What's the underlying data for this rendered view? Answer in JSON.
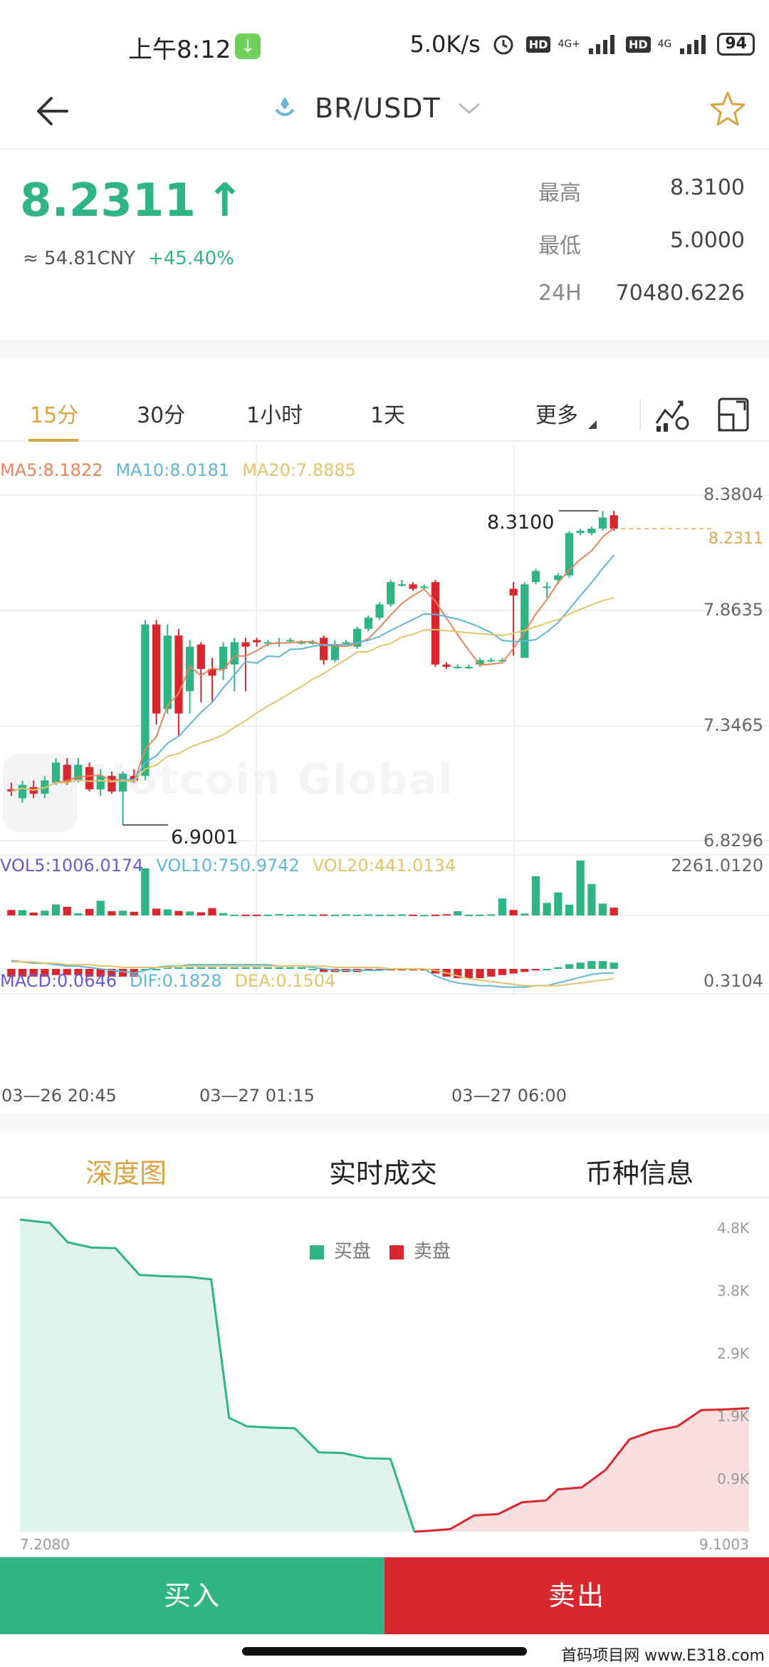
{
  "status_bar": {
    "time": "上午8:12",
    "speed": "5.0K/s",
    "net1": "4G+",
    "net2": "4G",
    "hd": "HD",
    "battery": "94",
    "icons": [
      "download-arrow-icon",
      "alarm-icon",
      "signal-icon"
    ]
  },
  "nav": {
    "pair": "BR/USDT",
    "icons": [
      "back-arrow-icon",
      "coin-logo-icon",
      "chevron-down-icon",
      "star-icon"
    ]
  },
  "ticker": {
    "price": "8.2311",
    "arrow": "↑",
    "cny": "≈ 54.81CNY",
    "change": "+45.40%",
    "high_label": "最高",
    "high": "8.3100",
    "low_label": "最低",
    "low": "5.0000",
    "vol_label": "24H",
    "vol": "70480.6226"
  },
  "timeframes": {
    "items": [
      "15分",
      "30分",
      "1小时",
      "1天"
    ],
    "active": "15分",
    "more": "更多",
    "icons": [
      "indicator-settings-icon",
      "fullscreen-icon"
    ]
  },
  "indicators": {
    "ma5": "MA5:8.1822",
    "ma10": "MA10:8.0181",
    "ma20": "MA20:7.8885",
    "vol5": "VOL5:1006.0174",
    "vol10": "VOL10:750.9742",
    "vol20": "VOL20:441.0134",
    "macd": "MACD:0.0646",
    "dif": "DIF:0.1828",
    "dea": "DEA:0.1504"
  },
  "price_axis": [
    "8.3804",
    "7.8635",
    "7.3465",
    "6.8296"
  ],
  "vol_axis": "2261.0120",
  "macd_axis": "0.3104",
  "high_marker": "8.3100",
  "low_marker": "6.9001",
  "last_marker": "8.2311",
  "watermark": "Hotcoin Global",
  "time_axis": [
    "03—26 20:45",
    "03—27 01:15",
    "03—27 06:00"
  ],
  "chart_data": {
    "type": "candlestick",
    "candles": [
      [
        7.06,
        7.05,
        7.09,
        7.03
      ],
      [
        7.02,
        7.08,
        7.1,
        7.0
      ],
      [
        7.07,
        7.04,
        7.1,
        7.02
      ],
      [
        7.04,
        7.1,
        7.12,
        7.02
      ],
      [
        7.09,
        7.18,
        7.2,
        7.08
      ],
      [
        7.17,
        7.09,
        7.2,
        7.08
      ],
      [
        7.1,
        7.17,
        7.2,
        7.09
      ],
      [
        7.16,
        7.06,
        7.18,
        7.05
      ],
      [
        7.06,
        7.12,
        7.15,
        7.03
      ],
      [
        7.12,
        7.05,
        7.14,
        7.04
      ],
      [
        7.05,
        7.13,
        7.14,
        6.9
      ],
      [
        7.12,
        7.1,
        7.15,
        7.09
      ],
      [
        7.12,
        7.8,
        7.82,
        7.1
      ],
      [
        7.8,
        7.4,
        7.82,
        7.35
      ],
      [
        7.42,
        7.75,
        7.8,
        7.4
      ],
      [
        7.75,
        7.4,
        7.78,
        7.3
      ],
      [
        7.5,
        7.7,
        7.73,
        7.4
      ],
      [
        7.71,
        7.6,
        7.72,
        7.45
      ],
      [
        7.6,
        7.57,
        7.65,
        7.45
      ],
      [
        7.6,
        7.7,
        7.72,
        7.55
      ],
      [
        7.62,
        7.72,
        7.74,
        7.5
      ],
      [
        7.72,
        7.7,
        7.74,
        7.5
      ],
      [
        7.73,
        7.72,
        7.74,
        7.7
      ],
      [
        7.72,
        7.72,
        7.73,
        7.7
      ],
      [
        7.72,
        7.72,
        7.74,
        7.7
      ],
      [
        7.73,
        7.73,
        7.74,
        7.72
      ],
      [
        7.72,
        7.72,
        7.73,
        7.71
      ],
      [
        7.72,
        7.72,
        7.73,
        7.71
      ],
      [
        7.74,
        7.64,
        7.75,
        7.62
      ],
      [
        7.64,
        7.71,
        7.73,
        7.63
      ],
      [
        7.72,
        7.72,
        7.73,
        7.71
      ],
      [
        7.7,
        7.78,
        7.79,
        7.69
      ],
      [
        7.78,
        7.83,
        7.84,
        7.77
      ],
      [
        7.83,
        7.89,
        7.9,
        7.82
      ],
      [
        7.89,
        7.99,
        8.0,
        7.88
      ],
      [
        7.98,
        7.98,
        8.0,
        7.97
      ],
      [
        7.98,
        7.96,
        7.99,
        7.95
      ],
      [
        7.97,
        7.97,
        7.98,
        7.96
      ],
      [
        7.99,
        7.62,
        8.0,
        7.61
      ],
      [
        7.62,
        7.61,
        7.63,
        7.6
      ],
      [
        7.61,
        7.61,
        7.62,
        7.6
      ],
      [
        7.61,
        7.61,
        7.62,
        7.6
      ],
      [
        7.62,
        7.64,
        7.65,
        7.61
      ],
      [
        7.64,
        7.64,
        7.65,
        7.63
      ],
      [
        7.64,
        7.64,
        7.65,
        7.63
      ],
      [
        7.96,
        7.93,
        7.99,
        7.66
      ],
      [
        7.65,
        7.98,
        7.99,
        7.65
      ],
      [
        7.99,
        8.04,
        8.05,
        7.98
      ],
      [
        7.97,
        7.97,
        7.99,
        7.92
      ],
      [
        8.0,
        8.02,
        8.03,
        7.98
      ],
      [
        8.02,
        8.21,
        8.22,
        8.01
      ],
      [
        8.21,
        8.22,
        8.23,
        8.2
      ],
      [
        8.21,
        8.23,
        8.24,
        8.2
      ],
      [
        8.23,
        8.28,
        8.31,
        8.22
      ],
      [
        8.29,
        8.23,
        8.31,
        8.22
      ]
    ],
    "ylim": [
      6.8296,
      8.3804
    ],
    "volume": [
      210,
      200,
      110,
      180,
      420,
      330,
      80,
      250,
      560,
      160,
      180,
      140,
      1800,
      260,
      230,
      170,
      150,
      120,
      280,
      90,
      30,
      30,
      30,
      30,
      50,
      30,
      40,
      30,
      40,
      30,
      40,
      30,
      40,
      30,
      30,
      40,
      30,
      20,
      30,
      50,
      160,
      30,
      30,
      40,
      650,
      210,
      70,
      1500,
      480,
      880,
      410,
      2100,
      1200,
      450,
      300
    ],
    "vol_max": 2261.012,
    "macd": [
      -0.05,
      -0.05,
      -0.05,
      -0.05,
      -0.04,
      -0.04,
      -0.04,
      -0.05,
      -0.05,
      -0.05,
      -0.05,
      -0.05,
      0.0,
      0.0,
      0.01,
      0.01,
      0.01,
      0.01,
      0.01,
      0.01,
      0.01,
      0.01,
      0.01,
      0.01,
      0.01,
      0.01,
      0.01,
      0.0,
      -0.02,
      -0.02,
      -0.02,
      -0.02,
      -0.01,
      -0.01,
      -0.01,
      -0.01,
      -0.01,
      -0.01,
      -0.03,
      -0.05,
      -0.06,
      -0.06,
      -0.06,
      -0.05,
      -0.04,
      -0.03,
      -0.02,
      -0.01,
      0.0,
      0.01,
      0.03,
      0.04,
      0.05,
      0.05,
      0.04
    ],
    "dif": [
      0.06,
      0.05,
      0.04,
      0.04,
      0.03,
      0.02,
      0.02,
      0.01,
      0.0,
      -0.01,
      -0.02,
      -0.03,
      -0.01,
      0.01,
      0.02,
      0.02,
      0.03,
      0.03,
      0.03,
      0.03,
      0.03,
      0.03,
      0.03,
      0.03,
      0.02,
      0.02,
      0.02,
      0.01,
      0.0,
      -0.01,
      -0.01,
      -0.01,
      -0.01,
      -0.01,
      0.0,
      0.0,
      0.0,
      0.0,
      -0.05,
      -0.08,
      -0.1,
      -0.11,
      -0.12,
      -0.12,
      -0.13,
      -0.13,
      -0.13,
      -0.12,
      -0.12,
      -0.1,
      -0.08,
      -0.06,
      -0.04,
      -0.03,
      -0.03
    ],
    "dea": [
      0.05,
      0.05,
      0.05,
      0.04,
      0.04,
      0.03,
      0.03,
      0.03,
      0.02,
      0.02,
      0.01,
      0.01,
      0.01,
      0.01,
      0.01,
      0.02,
      0.02,
      0.02,
      0.02,
      0.02,
      0.02,
      0.02,
      0.02,
      0.02,
      0.02,
      0.02,
      0.02,
      0.02,
      0.02,
      0.01,
      0.01,
      0.01,
      0.01,
      0.01,
      0.0,
      0.0,
      0.0,
      0.0,
      -0.01,
      -0.03,
      -0.05,
      -0.07,
      -0.08,
      -0.09,
      -0.1,
      -0.11,
      -0.12,
      -0.12,
      -0.12,
      -0.12,
      -0.11,
      -0.1,
      -0.09,
      -0.08,
      -0.07
    ],
    "macd_max": 0.3104
  },
  "bottom_tabs": {
    "items": [
      "深度图",
      "实时成交",
      "币种信息"
    ],
    "active": "深度图"
  },
  "depth": {
    "buy_label": "买盘",
    "sell_label": "卖盘",
    "y_axis": [
      "4.8K",
      "3.8K",
      "2.9K",
      "1.9K",
      "0.9K"
    ],
    "x_left": "7.2080",
    "x_right": "9.1003",
    "bids": [
      [
        0,
        4.8
      ],
      [
        0.05,
        4.75
      ],
      [
        0.08,
        4.45
      ],
      [
        0.12,
        4.37
      ],
      [
        0.16,
        4.36
      ],
      [
        0.2,
        3.95
      ],
      [
        0.24,
        3.93
      ],
      [
        0.28,
        3.92
      ],
      [
        0.32,
        3.88
      ],
      [
        0.35,
        1.75
      ],
      [
        0.38,
        1.62
      ],
      [
        0.42,
        1.6
      ],
      [
        0.46,
        1.59
      ],
      [
        0.5,
        1.22
      ],
      [
        0.54,
        1.21
      ],
      [
        0.58,
        1.13
      ],
      [
        0.62,
        1.12
      ],
      [
        0.66,
        0.0
      ]
    ],
    "asks": [
      [
        0.66,
        0.0
      ],
      [
        0.68,
        0.01
      ],
      [
        0.72,
        0.04
      ],
      [
        0.76,
        0.25
      ],
      [
        0.8,
        0.27
      ],
      [
        0.84,
        0.45
      ],
      [
        0.88,
        0.48
      ],
      [
        0.9,
        0.65
      ],
      [
        0.94,
        0.68
      ],
      [
        0.98,
        0.95
      ],
      [
        1.02,
        1.42
      ],
      [
        1.06,
        1.55
      ],
      [
        1.1,
        1.62
      ],
      [
        1.14,
        1.87
      ],
      [
        1.18,
        1.88
      ],
      [
        1.22,
        1.9
      ]
    ],
    "x_max": 1.22,
    "y_max": 4.8
  },
  "actions": {
    "buy": "买入",
    "sell": "卖出"
  },
  "footer": {
    "site": "首码项目网 www.E318.com"
  },
  "colors": {
    "up": "#2eb583",
    "down": "#d9272e",
    "accent": "#d9a441",
    "ma5": "#e8845a",
    "ma10": "#5fb6d8",
    "ma20": "#e3c46a",
    "vol5": "#6a5acd"
  }
}
